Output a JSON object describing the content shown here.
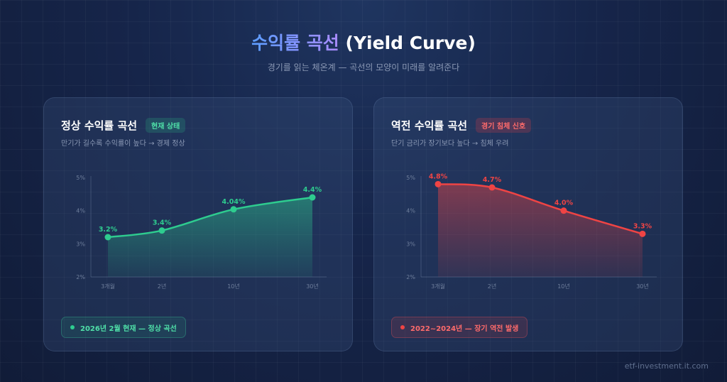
{
  "header": {
    "title_accent": "수익률 곡선",
    "title_rest": "(Yield Curve)",
    "subtitle": "경기를 읽는 체온계 — 곡선의 모양이 미래를 알려준다"
  },
  "colors": {
    "normal": "#2ecc8f",
    "inverted": "#ef4444",
    "accent_start": "#5b9dff",
    "accent_end": "#a98bff"
  },
  "cards": [
    {
      "title": "정상 수익률 곡선",
      "badge": "현재 상태",
      "description": "만기가 길수록 수익률이 높다 → 경제 정상",
      "note": "2026년 2월 현재 — 정상 곡선"
    },
    {
      "title": "역전 수익률 곡선",
      "badge": "경기 침체 신호",
      "description": "단기 금리가 장기보다 높다 → 침체 우려",
      "note": "2022~2024년 — 장기 역전 발생"
    }
  ],
  "chart_data": [
    {
      "type": "area",
      "title": "정상 수익률 곡선",
      "categories": [
        "3개월",
        "2년",
        "10년",
        "30년"
      ],
      "x_years": [
        0.25,
        2,
        10,
        30
      ],
      "values": [
        3.2,
        3.4,
        4.04,
        4.4
      ],
      "data_labels": [
        "3.2%",
        "3.4%",
        "4.04%",
        "4.4%"
      ],
      "y_ticks": [
        "2%",
        "3%",
        "4%",
        "5%"
      ],
      "ylim": [
        2,
        5
      ],
      "color": "#2ecc8f",
      "grid": false
    },
    {
      "type": "area",
      "title": "역전 수익률 곡선",
      "categories": [
        "3개월",
        "2년",
        "10년",
        "30년"
      ],
      "x_years": [
        0.25,
        2,
        10,
        30
      ],
      "values": [
        4.8,
        4.7,
        4.0,
        3.3
      ],
      "data_labels": [
        "4.8%",
        "4.7%",
        "4.0%",
        "3.3%"
      ],
      "y_ticks": [
        "2%",
        "3%",
        "4%",
        "5%"
      ],
      "ylim": [
        2,
        5
      ],
      "color": "#ef4444",
      "grid": false
    }
  ],
  "footer": "etf-investment.it.com"
}
